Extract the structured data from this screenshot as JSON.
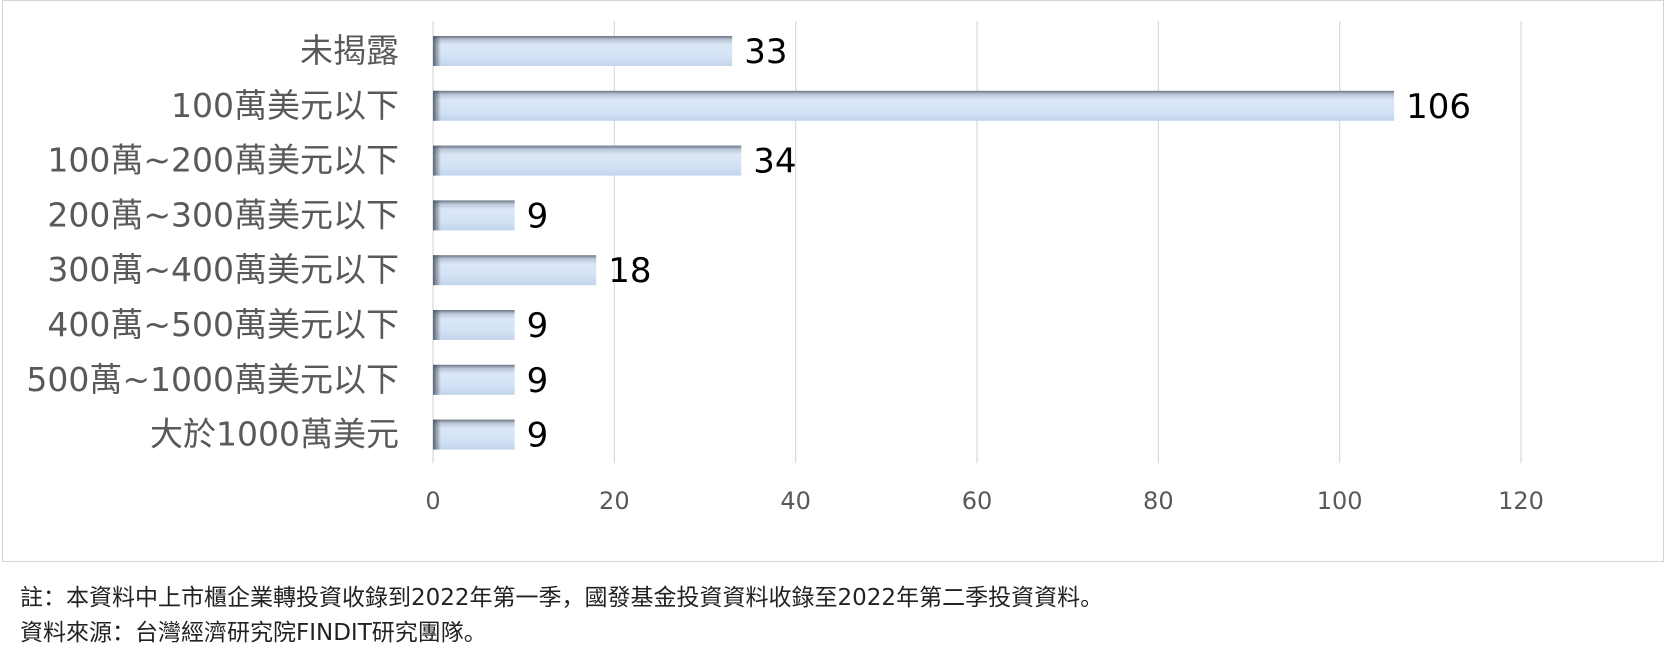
{
  "chart_data": {
    "type": "bar",
    "orientation": "horizontal",
    "categories": [
      "未揭露",
      "100萬美元以下",
      "100萬~200萬美元以下",
      "200萬~300萬美元以下",
      "300萬~400萬美元以下",
      "400萬~500萬美元以下",
      "500萬~1000萬美元以下",
      "大於1000萬美元"
    ],
    "values": [
      33,
      106,
      34,
      9,
      18,
      9,
      9,
      9
    ],
    "data_labels": [
      "33",
      "106",
      "34",
      "9",
      "18",
      "9",
      "9",
      "9"
    ],
    "xlim": [
      0,
      120
    ],
    "x_ticks": [
      0,
      20,
      40,
      60,
      80,
      100,
      120
    ],
    "x_tick_labels": [
      "0",
      "20",
      "40",
      "60",
      "80",
      "100",
      "120"
    ],
    "grid": "vertical",
    "legend": "none",
    "colors": {
      "bar_fill_light": "#dde9f7",
      "bar_fill_mid": "#c5d7ef",
      "bar_shadow": "#5a6270",
      "grid": "#d9d9d9",
      "category_text": "#595959",
      "value_text": "#000000",
      "tick_text": "#595959"
    }
  },
  "notes": {
    "line1": "註：本資料中上市櫃企業轉投資收錄到2022年第一季，國發基金投資資料收錄至2022年第二季投資資料。",
    "line2": "資料來源：台灣經濟研究院FINDIT研究團隊。"
  }
}
